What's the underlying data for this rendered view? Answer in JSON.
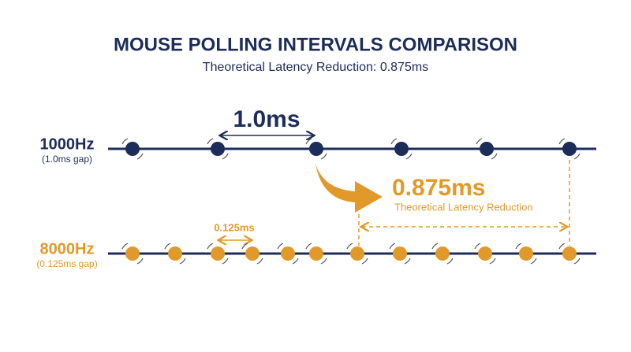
{
  "header": {
    "title": "MOUSE POLLING INTERVALS COMPARISON",
    "subtitle": "Theoretical Latency Reduction: 0.875ms"
  },
  "rows": [
    {
      "label": "1000Hz",
      "note": "(1.0ms gap)",
      "interval": "1.0ms"
    },
    {
      "label": "8000Hz",
      "note": "(0.125ms gap)",
      "interval": "0.125ms"
    }
  ],
  "callout": {
    "value": "0.875ms",
    "caption": "Theoretical Latency Reduction"
  }
}
